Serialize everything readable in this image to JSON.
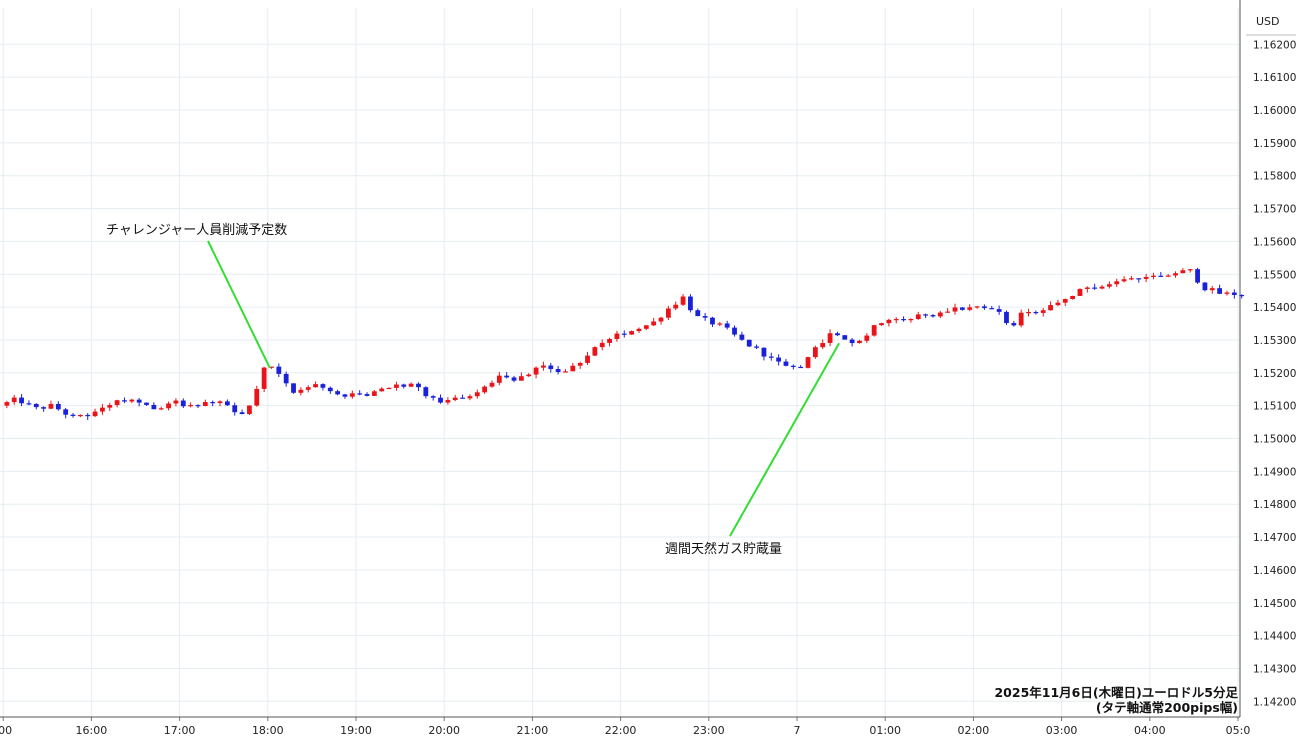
{
  "chart_data": {
    "type": "candlestick",
    "currency_label": "USD",
    "caption_line1": "2025年11月6日(木曜日)ユーロドル5分足",
    "caption_line2": "(タテ軸通常200pips幅)",
    "y_ticks": [
      "1.16200",
      "1.16100",
      "1.16000",
      "1.15900",
      "1.15800",
      "1.15700",
      "1.15600",
      "1.15500",
      "1.15400",
      "1.15300",
      "1.15200",
      "1.15100",
      "1.15000",
      "1.14900",
      "1.14800",
      "1.14700",
      "1.14600",
      "1.14500",
      "1.14400",
      "1.14300",
      "1.14200"
    ],
    "ylim": [
      1.1417,
      1.1631
    ],
    "x_ticks": [
      {
        "label": ":00",
        "hour": 15
      },
      {
        "label": "16:00",
        "hour": 16
      },
      {
        "label": "17:00",
        "hour": 17
      },
      {
        "label": "18:00",
        "hour": 18
      },
      {
        "label": "19:00",
        "hour": 19
      },
      {
        "label": "20:00",
        "hour": 20
      },
      {
        "label": "21:00",
        "hour": 21
      },
      {
        "label": "22:00",
        "hour": 22
      },
      {
        "label": "23:00",
        "hour": 23
      },
      {
        "label": "7",
        "hour": 24
      },
      {
        "label": "01:00",
        "hour": 25
      },
      {
        "label": "02:00",
        "hour": 26
      },
      {
        "label": "03:00",
        "hour": 27
      },
      {
        "label": "04:00",
        "hour": 28
      },
      {
        "label": "05:0",
        "hour": 29
      }
    ],
    "up_color": "#e8141a",
    "down_color": "#1a22d8",
    "annotation_color": "#33dd33",
    "annotations": [
      {
        "text": "チャレンジャー人員削減予定数",
        "hour": 18.0,
        "price": 1.15215
      },
      {
        "text": "週間天然ガス貯蔵量",
        "hour": 24.5,
        "price": 1.1529
      }
    ],
    "anchors": [
      [
        15.0,
        1.151
      ],
      [
        15.2,
        1.1512
      ],
      [
        15.4,
        1.1509
      ],
      [
        15.6,
        1.151
      ],
      [
        15.85,
        1.1506
      ],
      [
        16.0,
        1.1507
      ],
      [
        16.2,
        1.151
      ],
      [
        16.4,
        1.1512
      ],
      [
        16.6,
        1.1511
      ],
      [
        16.8,
        1.1509
      ],
      [
        17.0,
        1.1511
      ],
      [
        17.2,
        1.151
      ],
      [
        17.5,
        1.1511
      ],
      [
        17.65,
        1.1508
      ],
      [
        17.8,
        1.1507
      ],
      [
        17.9,
        1.1514
      ],
      [
        18.0,
        1.1521
      ],
      [
        18.1,
        1.1522
      ],
      [
        18.3,
        1.1514
      ],
      [
        18.6,
        1.1516
      ],
      [
        18.9,
        1.1513
      ],
      [
        19.2,
        1.1513
      ],
      [
        19.4,
        1.1516
      ],
      [
        19.7,
        1.1516
      ],
      [
        19.95,
        1.1511
      ],
      [
        20.15,
        1.1512
      ],
      [
        20.4,
        1.1514
      ],
      [
        20.7,
        1.1519
      ],
      [
        20.9,
        1.1518
      ],
      [
        21.15,
        1.1522
      ],
      [
        21.4,
        1.152
      ],
      [
        21.6,
        1.1523
      ],
      [
        21.85,
        1.153
      ],
      [
        22.15,
        1.1533
      ],
      [
        22.4,
        1.1535
      ],
      [
        22.6,
        1.154
      ],
      [
        22.75,
        1.1543
      ],
      [
        22.9,
        1.1537
      ],
      [
        23.2,
        1.1534
      ],
      [
        23.4,
        1.153
      ],
      [
        23.65,
        1.1526
      ],
      [
        23.9,
        1.1522
      ],
      [
        24.05,
        1.1521
      ],
      [
        24.25,
        1.1527
      ],
      [
        24.4,
        1.1532
      ],
      [
        24.5,
        1.1531
      ],
      [
        24.7,
        1.1528
      ],
      [
        24.9,
        1.1534
      ],
      [
        25.1,
        1.1537
      ],
      [
        25.35,
        1.1537
      ],
      [
        25.6,
        1.1538
      ],
      [
        25.85,
        1.154
      ],
      [
        26.05,
        1.1539
      ],
      [
        26.3,
        1.154
      ],
      [
        26.45,
        1.1533
      ],
      [
        26.6,
        1.1539
      ],
      [
        26.8,
        1.1538
      ],
      [
        27.05,
        1.1542
      ],
      [
        27.25,
        1.1545
      ],
      [
        27.55,
        1.1547
      ],
      [
        27.8,
        1.1548
      ],
      [
        28.15,
        1.155
      ],
      [
        28.5,
        1.1551
      ],
      [
        28.65,
        1.1546
      ],
      [
        28.85,
        1.1544
      ],
      [
        29.0,
        1.1544
      ]
    ]
  }
}
